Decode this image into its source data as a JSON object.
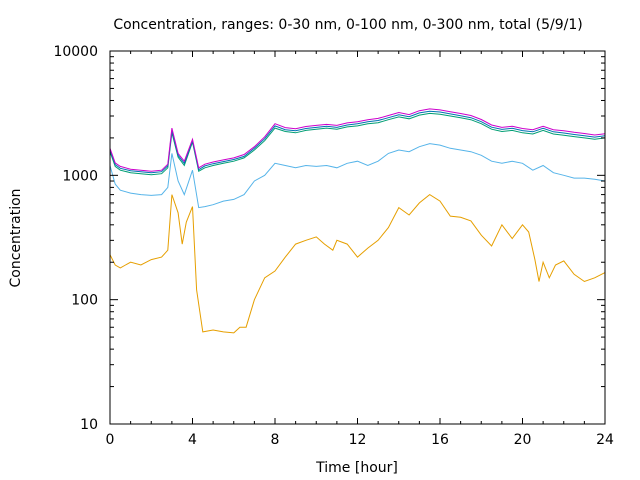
{
  "chart_data": {
    "type": "line",
    "title": "Concentration, ranges: 0-30 nm, 0-100 nm, 0-300 nm, total (5/9/1)",
    "xlabel": "Time [hour]",
    "ylabel": "Concentration",
    "xlim": [
      0,
      24
    ],
    "ylim": [
      10,
      10000
    ],
    "yscale": "log",
    "grid": false,
    "xticks": [
      0,
      4,
      8,
      12,
      16,
      20,
      24
    ],
    "xtick_labels": [
      "0",
      "4",
      "8",
      "12",
      "16",
      "20",
      "24"
    ],
    "yticks": [
      10,
      100,
      1000,
      10000
    ],
    "ytick_labels": [
      "10",
      "100",
      "1000",
      "10000"
    ],
    "series": [
      {
        "color": "#e69f00",
        "x": [
          0,
          0.25,
          0.5,
          0.75,
          1,
          1.5,
          2,
          2.5,
          2.8,
          3,
          3.3,
          3.5,
          3.7,
          4,
          4.2,
          4.5,
          5,
          5.5,
          6,
          6.3,
          6.6,
          7,
          7.5,
          8,
          8.5,
          9,
          9.5,
          10,
          10.4,
          10.8,
          11,
          11.5,
          12,
          12.5,
          13,
          13.5,
          14,
          14.5,
          15,
          15.5,
          16,
          16.5,
          17,
          17.5,
          18,
          18.5,
          19,
          19.5,
          20,
          20.3,
          20.6,
          20.8,
          21,
          21.3,
          21.6,
          22,
          22.5,
          23,
          23.5,
          24
        ],
        "y": [
          230,
          190,
          180,
          190,
          200,
          190,
          210,
          220,
          250,
          700,
          500,
          280,
          420,
          560,
          120,
          55,
          57,
          55,
          54,
          60,
          60,
          100,
          150,
          170,
          220,
          280,
          300,
          320,
          280,
          250,
          300,
          280,
          220,
          260,
          300,
          380,
          550,
          480,
          600,
          700,
          620,
          470,
          460,
          430,
          330,
          270,
          400,
          310,
          400,
          350,
          210,
          140,
          200,
          150,
          190,
          205,
          160,
          140,
          150,
          165
        ],
        "x_start": 0,
        "y_start": 230
      },
      {
        "color": "#56b4e9",
        "x": [
          0,
          0.25,
          0.5,
          1,
          1.5,
          2,
          2.5,
          2.8,
          3,
          3.3,
          3.6,
          4,
          4.3,
          4.6,
          5,
          5.5,
          6,
          6.5,
          7,
          7.5,
          8,
          8.5,
          9,
          9.5,
          10,
          10.5,
          11,
          11.5,
          12,
          12.5,
          13,
          13.5,
          14,
          14.5,
          15,
          15.5,
          16,
          16.5,
          17,
          17.5,
          18,
          18.5,
          19,
          19.5,
          20,
          20.5,
          21,
          21.5,
          22,
          22.5,
          23,
          23.5,
          24
        ],
        "y": [
          1200,
          850,
          760,
          720,
          700,
          690,
          700,
          800,
          1500,
          900,
          700,
          1100,
          550,
          560,
          580,
          620,
          640,
          700,
          900,
          1000,
          1250,
          1200,
          1150,
          1200,
          1180,
          1200,
          1150,
          1250,
          1300,
          1200,
          1300,
          1500,
          1600,
          1550,
          1700,
          1800,
          1750,
          1650,
          1600,
          1550,
          1450,
          1300,
          1250,
          1300,
          1250,
          1100,
          1200,
          1050,
          1000,
          950,
          950,
          930,
          900
        ]
      },
      {
        "color": "#009e73",
        "x": [
          0,
          0.25,
          0.5,
          1,
          1.5,
          2,
          2.5,
          2.8,
          3,
          3.3,
          3.6,
          4,
          4.3,
          4.6,
          5,
          5.5,
          6,
          6.5,
          7,
          7.5,
          8,
          8.5,
          9,
          9.5,
          10,
          10.5,
          11,
          11.5,
          12,
          12.5,
          13,
          13.5,
          14,
          14.5,
          15,
          15.5,
          16,
          16.5,
          17,
          17.5,
          18,
          18.5,
          19,
          19.5,
          20,
          20.5,
          21,
          21.5,
          22,
          22.5,
          23,
          23.5,
          24
        ],
        "y": [
          1550,
          1180,
          1100,
          1050,
          1030,
          1010,
          1030,
          1150,
          2200,
          1400,
          1200,
          1850,
          1080,
          1150,
          1200,
          1250,
          1300,
          1380,
          1600,
          1900,
          2400,
          2250,
          2200,
          2300,
          2350,
          2400,
          2350,
          2450,
          2500,
          2600,
          2650,
          2800,
          2950,
          2850,
          3050,
          3150,
          3100,
          3000,
          2900,
          2800,
          2600,
          2350,
          2250,
          2300,
          2200,
          2150,
          2300,
          2150,
          2100,
          2050,
          2000,
          1950,
          2000
        ]
      },
      {
        "color": "#0072b2",
        "x": [
          0,
          0.25,
          0.5,
          1,
          1.5,
          2,
          2.5,
          2.8,
          3,
          3.3,
          3.6,
          4,
          4.3,
          4.6,
          5,
          5.5,
          6,
          6.5,
          7,
          7.5,
          8,
          8.5,
          9,
          9.5,
          10,
          10.5,
          11,
          11.5,
          12,
          12.5,
          13,
          13.5,
          14,
          14.5,
          15,
          15.5,
          16,
          16.5,
          17,
          17.5,
          18,
          18.5,
          19,
          19.5,
          20,
          20.5,
          21,
          21.5,
          22,
          22.5,
          23,
          23.5,
          24
        ],
        "y": [
          1600,
          1220,
          1140,
          1090,
          1070,
          1050,
          1070,
          1190,
          2300,
          1450,
          1250,
          1900,
          1110,
          1190,
          1240,
          1290,
          1340,
          1420,
          1650,
          1970,
          2500,
          2330,
          2280,
          2380,
          2430,
          2480,
          2430,
          2540,
          2600,
          2700,
          2760,
          2910,
          3070,
          2960,
          3180,
          3280,
          3230,
          3120,
          3020,
          2910,
          2700,
          2440,
          2340,
          2390,
          2290,
          2240,
          2390,
          2240,
          2190,
          2130,
          2080,
          2030,
          2080
        ]
      },
      {
        "color": "#cc00cc",
        "x": [
          0,
          0.25,
          0.5,
          1,
          1.5,
          2,
          2.5,
          2.8,
          3,
          3.3,
          3.6,
          4,
          4.3,
          4.6,
          5,
          5.5,
          6,
          6.5,
          7,
          7.5,
          8,
          8.5,
          9,
          9.5,
          10,
          10.5,
          11,
          11.5,
          12,
          12.5,
          13,
          13.5,
          14,
          14.5,
          15,
          15.5,
          16,
          16.5,
          17,
          17.5,
          18,
          18.5,
          19,
          19.5,
          20,
          20.5,
          21,
          21.5,
          22,
          22.5,
          23,
          23.5,
          24
        ],
        "y": [
          1650,
          1260,
          1180,
          1120,
          1100,
          1080,
          1100,
          1230,
          2400,
          1500,
          1300,
          1950,
          1150,
          1230,
          1280,
          1330,
          1380,
          1470,
          1700,
          2040,
          2600,
          2420,
          2370,
          2470,
          2520,
          2570,
          2520,
          2640,
          2700,
          2800,
          2870,
          3030,
          3200,
          3080,
          3310,
          3420,
          3360,
          3250,
          3140,
          3030,
          2810,
          2540,
          2430,
          2480,
          2380,
          2330,
          2480,
          2330,
          2280,
          2220,
          2170,
          2110,
          2160
        ]
      }
    ]
  }
}
